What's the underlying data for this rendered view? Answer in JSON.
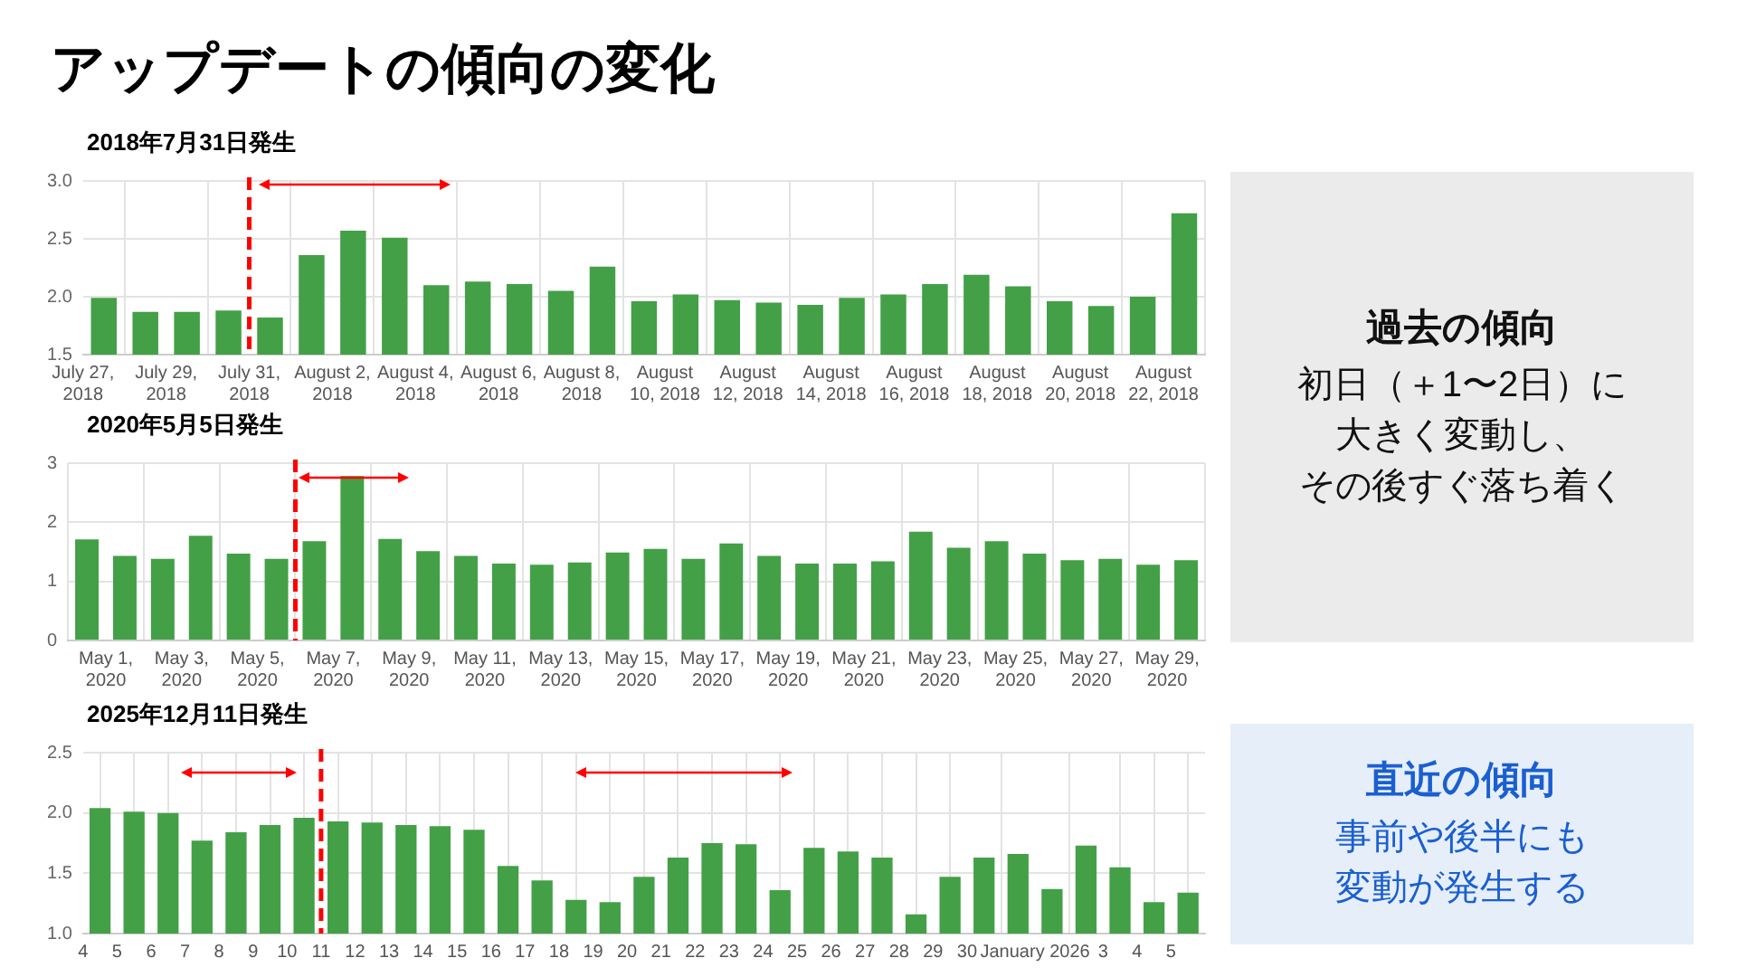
{
  "chart_data": [
    {
      "type": "bar",
      "title": "アップデートの傾向の変化",
      "subtitle": "2018年7月31日発生",
      "color": "#43a047",
      "grid": true,
      "legend": false,
      "x": [
        "2018-07-27T12:00",
        "2018-07-28T12:00",
        "2018-07-29T12:00",
        "2018-07-30T12:00",
        "2018-07-31T12:00",
        "2018-08-01T12:00",
        "2018-08-02T12:00",
        "2018-08-03T12:00",
        "2018-08-04T12:00",
        "2018-08-05T12:00",
        "2018-08-06T12:00",
        "2018-08-07T12:00",
        "2018-08-08T12:00",
        "2018-08-09T12:00",
        "2018-08-10T12:00",
        "2018-08-11T12:00",
        "2018-08-12T12:00",
        "2018-08-13T12:00",
        "2018-08-14T12:00",
        "2018-08-15T12:00",
        "2018-08-16T12:00",
        "2018-08-17T12:00",
        "2018-08-18T12:00",
        "2018-08-19T12:00",
        "2018-08-20T12:00",
        "2018-08-21T12:00",
        "2018-08-22T12:00"
      ],
      "values": [
        1.99,
        1.87,
        1.87,
        1.88,
        1.82,
        2.36,
        2.57,
        2.51,
        2.1,
        2.13,
        2.11,
        2.05,
        2.26,
        1.96,
        2.02,
        1.97,
        1.95,
        1.93,
        1.99,
        2.02,
        2.11,
        2.19,
        2.09,
        1.96,
        1.92,
        2.0,
        2.72
      ],
      "xlim": [
        "2018-07-27",
        "2018-08-23"
      ],
      "xticks": [
        {
          "value": "2018-07-27",
          "label": "July 27,\n2018"
        },
        {
          "value": "2018-07-29",
          "label": "July 29,\n2018"
        },
        {
          "value": "2018-07-31",
          "label": "July 31,\n2018"
        },
        {
          "value": "2018-08-02",
          "label": "August 2,\n2018"
        },
        {
          "value": "2018-08-04",
          "label": "August 4,\n2018"
        },
        {
          "value": "2018-08-06",
          "label": "August 6,\n2018"
        },
        {
          "value": "2018-08-08",
          "label": "August 8,\n2018"
        },
        {
          "value": "2018-08-10",
          "label": "August\n10, 2018"
        },
        {
          "value": "2018-08-12",
          "label": "August\n12, 2018"
        },
        {
          "value": "2018-08-14",
          "label": "August\n14, 2018"
        },
        {
          "value": "2018-08-16",
          "label": "August\n16, 2018"
        },
        {
          "value": "2018-08-18",
          "label": "August\n18, 2018"
        },
        {
          "value": "2018-08-20",
          "label": "August\n20, 2018"
        },
        {
          "value": "2018-08-22",
          "label": "August\n22, 2018"
        }
      ],
      "ylim": [
        1.5,
        3
      ],
      "yticks": [
        {
          "value": 1.5,
          "label": "1.5"
        },
        {
          "value": 2,
          "label": "2.0"
        },
        {
          "value": 2.5,
          "label": "2.5"
        },
        {
          "value": 3,
          "label": "3.0"
        }
      ],
      "ref_lines": [
        {
          "axis": "x",
          "value": "2018-07-31",
          "color": "#ff0000",
          "line_style": "dashed"
        }
      ]
    },
    {
      "type": "bar",
      "title": "2020年5月5日発生",
      "color": "#43a047",
      "grid": true,
      "legend": false,
      "x": [
        "2020-04-30T12:00",
        "2020-05-01T12:00",
        "2020-05-02T12:00",
        "2020-05-03T12:00",
        "2020-05-04T12:00",
        "2020-05-05T12:00",
        "2020-05-06T12:00",
        "2020-05-07T12:00",
        "2020-05-08T12:00",
        "2020-05-09T12:00",
        "2020-05-10T12:00",
        "2020-05-11T12:00",
        "2020-05-12T12:00",
        "2020-05-13T12:00",
        "2020-05-14T12:00",
        "2020-05-15T12:00",
        "2020-05-16T12:00",
        "2020-05-17T12:00",
        "2020-05-18T12:00",
        "2020-05-19T12:00",
        "2020-05-20T12:00",
        "2020-05-21T12:00",
        "2020-05-22T12:00",
        "2020-05-23T12:00",
        "2020-05-24T12:00",
        "2020-05-25T12:00",
        "2020-05-26T12:00",
        "2020-05-27T12:00",
        "2020-05-28T12:00",
        "2020-05-29T12:00"
      ],
      "values": [
        1.71,
        1.43,
        1.38,
        1.77,
        1.47,
        1.38,
        1.68,
        2.78,
        1.72,
        1.51,
        1.43,
        1.3,
        1.28,
        1.32,
        1.49,
        1.55,
        1.38,
        1.64,
        1.43,
        1.3,
        1.3,
        1.34,
        1.84,
        1.57,
        1.68,
        1.47,
        1.36,
        1.38,
        1.28,
        1.36
      ],
      "xlim": [
        "2020-04-30",
        "2020-05-30"
      ],
      "xticks": [
        {
          "value": "2020-05-01",
          "label": "May 1,\n2020"
        },
        {
          "value": "2020-05-03",
          "label": "May 3,\n2020"
        },
        {
          "value": "2020-05-05",
          "label": "May 5,\n2020"
        },
        {
          "value": "2020-05-07",
          "label": "May 7,\n2020"
        },
        {
          "value": "2020-05-09",
          "label": "May 9,\n2020"
        },
        {
          "value": "2020-05-11",
          "label": "May 11,\n2020"
        },
        {
          "value": "2020-05-13",
          "label": "May 13,\n2020"
        },
        {
          "value": "2020-05-15",
          "label": "May 15,\n2020"
        },
        {
          "value": "2020-05-17",
          "label": "May 17,\n2020"
        },
        {
          "value": "2020-05-19",
          "label": "May 19,\n2020"
        },
        {
          "value": "2020-05-21",
          "label": "May 21,\n2020"
        },
        {
          "value": "2020-05-23",
          "label": "May 23,\n2020"
        },
        {
          "value": "2020-05-25",
          "label": "May 25,\n2020"
        },
        {
          "value": "2020-05-27",
          "label": "May 27,\n2020"
        },
        {
          "value": "2020-05-29",
          "label": "May 29,\n2020"
        }
      ],
      "ylim": [
        0,
        3
      ],
      "yticks": [
        0,
        1,
        2,
        3
      ],
      "ref_lines": [
        {
          "axis": "x",
          "value": "2020-05-06",
          "color": "#ff0000",
          "line_style": "dashed"
        }
      ]
    },
    {
      "type": "bar",
      "title": "2025年12月11日発生",
      "color": "#43a047",
      "grid": true,
      "legend": false,
      "x": [
        "2025-12-04T12:00",
        "2025-12-05T12:00",
        "2025-12-06T12:00",
        "2025-12-07T12:00",
        "2025-12-08T12:00",
        "2025-12-09T12:00",
        "2025-12-10T12:00",
        "2025-12-11T12:00",
        "2025-12-12T12:00",
        "2025-12-13T12:00",
        "2025-12-14T12:00",
        "2025-12-15T12:00",
        "2025-12-16T12:00",
        "2025-12-17T12:00",
        "2025-12-18T12:00",
        "2025-12-19T12:00",
        "2025-12-20T12:00",
        "2025-12-21T12:00",
        "2025-12-22T12:00",
        "2025-12-23T12:00",
        "2025-12-24T12:00",
        "2025-12-25T12:00",
        "2025-12-26T12:00",
        "2025-12-27T12:00",
        "2025-12-28T12:00",
        "2025-12-29T12:00",
        "2025-12-30T12:00",
        "2025-12-31T12:00",
        "2026-01-01T12:00",
        "2026-01-02T12:00",
        "2026-01-03T12:00",
        "2026-01-04T12:00",
        "2026-01-05T12:00"
      ],
      "values": [
        2.04,
        2.01,
        2.0,
        1.77,
        1.84,
        1.9,
        1.96,
        1.93,
        1.92,
        1.9,
        1.89,
        1.86,
        1.56,
        1.44,
        1.28,
        1.26,
        1.47,
        1.63,
        1.75,
        1.74,
        1.36,
        1.71,
        1.68,
        1.63,
        1.16,
        1.47,
        1.63,
        1.66,
        1.37,
        1.73,
        1.55,
        1.26,
        1.34
      ],
      "xlim": [
        "2025-12-04",
        "2026-01-06"
      ],
      "xticks": [
        {
          "value": "2025-12-04",
          "label": "4"
        },
        {
          "value": "2025-12-05",
          "label": "5"
        },
        {
          "value": "2025-12-06",
          "label": "6"
        },
        {
          "value": "2025-12-07",
          "label": "7"
        },
        {
          "value": "2025-12-08",
          "label": "8"
        },
        {
          "value": "2025-12-09",
          "label": "9"
        },
        {
          "value": "2025-12-10",
          "label": "10"
        },
        {
          "value": "2025-12-11",
          "label": "11"
        },
        {
          "value": "2025-12-12",
          "label": "12"
        },
        {
          "value": "2025-12-13",
          "label": "13"
        },
        {
          "value": "2025-12-14",
          "label": "14"
        },
        {
          "value": "2025-12-15",
          "label": "15"
        },
        {
          "value": "2025-12-16",
          "label": "16"
        },
        {
          "value": "2025-12-17",
          "label": "17"
        },
        {
          "value": "2025-12-18",
          "label": "18"
        },
        {
          "value": "2025-12-19",
          "label": "19"
        },
        {
          "value": "2025-12-20",
          "label": "20"
        },
        {
          "value": "2025-12-21",
          "label": "21"
        },
        {
          "value": "2025-12-22",
          "label": "22"
        },
        {
          "value": "2025-12-23",
          "label": "23"
        },
        {
          "value": "2025-12-24",
          "label": "24"
        },
        {
          "value": "2025-12-25",
          "label": "25"
        },
        {
          "value": "2025-12-26",
          "label": "26"
        },
        {
          "value": "2025-12-27",
          "label": "27"
        },
        {
          "value": "2025-12-28",
          "label": "28"
        },
        {
          "value": "2025-12-29",
          "label": "29"
        },
        {
          "value": "2025-12-30",
          "label": "30"
        },
        {
          "value": "2026-01-01",
          "label": "January 2026"
        },
        {
          "value": "2026-01-03",
          "label": "3"
        },
        {
          "value": "2026-01-04",
          "label": "4"
        },
        {
          "value": "2026-01-05",
          "label": "5"
        }
      ],
      "ylim": [
        1,
        2.5
      ],
      "yticks": [
        {
          "value": 1,
          "label": "1.0"
        },
        {
          "value": 1.5,
          "label": "1.5"
        },
        {
          "value": 2,
          "label": "2.0"
        },
        {
          "value": 2.5,
          "label": "2.5"
        }
      ],
      "ref_lines": [
        {
          "axis": "x",
          "value": "2025-12-11",
          "color": "#ff0000",
          "line_style": "dashed"
        }
      ]
    },
    {
      "type": "other",
      "title": "過去の傾向",
      "annotations": [
        "初日（＋1〜2日）に",
        "大きく変動し、",
        "その後すぐ落ち着く"
      ]
    },
    {
      "type": "other",
      "title": "直近の傾向",
      "annotations": [
        "事前や後半にも",
        "変動が発生する"
      ]
    }
  ]
}
